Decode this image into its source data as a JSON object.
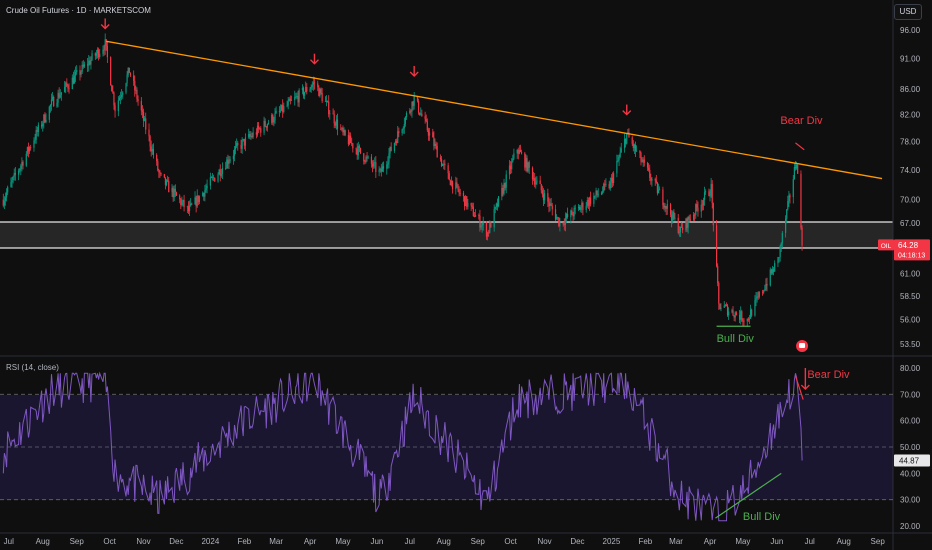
{
  "header": {
    "title": "Crude Oil Futures · 1D · MARKETSCOM",
    "currency": "USD"
  },
  "rsi": {
    "title": "RSI (14, close)",
    "last_value_label": "44.87",
    "line_color": "#7e57c2"
  },
  "price_tag": {
    "symbol": "OIL",
    "price": "64.28",
    "countdown": "04:18:13",
    "color": "#f23645"
  },
  "annotations": {
    "bear_div_price": "Bear Div",
    "bull_div_price": "Bull Div",
    "bear_div_rsi": "Bear Div",
    "bull_div_rsi": "Bull Div"
  },
  "colors": {
    "up": "#089981",
    "down": "#f23645",
    "trendline": "#ff9800",
    "arrow": "#f23645",
    "bull_label": "#4caf50",
    "support_zone": "#ffffff"
  },
  "chart_data": [
    {
      "type": "candlestick",
      "title": "Crude Oil Futures · 1D · MARKETSCOM",
      "x_tick_labels": [
        "Jul",
        "Aug",
        "Sep",
        "Oct",
        "Nov",
        "Dec",
        "2024",
        "Feb",
        "Mar",
        "Apr",
        "May",
        "Jun",
        "Jul",
        "Aug",
        "Sep",
        "Oct",
        "Nov",
        "Dec",
        "2025",
        "Feb",
        "Mar",
        "Apr",
        "May",
        "Jun",
        "Jul",
        "Aug",
        "Sep"
      ],
      "y_tick_labels": [
        "96.00",
        "91.00",
        "86.00",
        "82.00",
        "78.00",
        "74.00",
        "70.00",
        "67.00",
        "64.00",
        "61.00",
        "58.50",
        "56.00",
        "53.50"
      ],
      "y_scale": "log",
      "ylim": [
        52.0,
        98.0
      ],
      "key_closes": [
        {
          "x": "2023-06-26",
          "close": 70.0
        },
        {
          "x": "2023-08-10",
          "close": 84.0
        },
        {
          "x": "2023-09-27",
          "close": 93.5
        },
        {
          "x": "2023-10-06",
          "close": 83.0
        },
        {
          "x": "2023-10-19",
          "close": 89.0
        },
        {
          "x": "2023-11-16",
          "close": 73.0
        },
        {
          "x": "2023-12-12",
          "close": 68.5
        },
        {
          "x": "2024-01-25",
          "close": 77.0
        },
        {
          "x": "2024-04-05",
          "close": 87.0
        },
        {
          "x": "2024-05-01",
          "close": 79.0
        },
        {
          "x": "2024-06-04",
          "close": 73.5
        },
        {
          "x": "2024-07-05",
          "close": 84.5
        },
        {
          "x": "2024-08-05",
          "close": 73.0
        },
        {
          "x": "2024-09-10",
          "close": 65.8
        },
        {
          "x": "2024-10-07",
          "close": 77.0
        },
        {
          "x": "2024-11-15",
          "close": 67.0
        },
        {
          "x": "2024-12-31",
          "close": 72.0
        },
        {
          "x": "2025-01-15",
          "close": 79.0
        },
        {
          "x": "2025-03-05",
          "close": 66.0
        },
        {
          "x": "2025-04-02",
          "close": 71.5
        },
        {
          "x": "2025-04-09",
          "close": 57.5
        },
        {
          "x": "2025-05-05",
          "close": 56.0
        },
        {
          "x": "2025-06-02",
          "close": 62.5
        },
        {
          "x": "2025-06-19",
          "close": 75.5
        },
        {
          "x": "2025-06-24",
          "close": 64.28
        }
      ],
      "lines": [
        {
          "kind": "trendline",
          "from": {
            "x": "2023-09-28",
            "y": 94.0
          },
          "to": {
            "x": "2025-09-05",
            "y": 72.8
          }
        },
        {
          "kind": "support-zone",
          "from_y": 64.0,
          "to_y": 67.0
        }
      ]
    },
    {
      "type": "line",
      "title": "RSI (14, close)",
      "y_tick_labels": [
        "80.00",
        "70.00",
        "60.00",
        "50.00",
        "40.00",
        "30.00",
        "20.00"
      ],
      "ylim": [
        20,
        80
      ],
      "levels": [
        70,
        50,
        30
      ],
      "key_values": [
        {
          "x": "2023-06-26",
          "rsi": 48
        },
        {
          "x": "2023-08-10",
          "rsi": 72
        },
        {
          "x": "2023-09-27",
          "rsi": 76
        },
        {
          "x": "2023-10-06",
          "rsi": 40
        },
        {
          "x": "2023-11-16",
          "rsi": 30
        },
        {
          "x": "2024-01-25",
          "rsi": 58
        },
        {
          "x": "2024-04-05",
          "rsi": 76
        },
        {
          "x": "2024-06-04",
          "rsi": 30
        },
        {
          "x": "2024-07-05",
          "rsi": 69
        },
        {
          "x": "2024-09-10",
          "rsi": 29
        },
        {
          "x": "2024-10-07",
          "rsi": 68
        },
        {
          "x": "2025-01-15",
          "rsi": 75
        },
        {
          "x": "2025-03-05",
          "rsi": 31
        },
        {
          "x": "2025-04-09",
          "rsi": 23
        },
        {
          "x": "2025-05-05",
          "rsi": 35
        },
        {
          "x": "2025-06-19",
          "rsi": 77
        },
        {
          "x": "2025-06-24",
          "rsi": 44.87
        }
      ]
    }
  ]
}
